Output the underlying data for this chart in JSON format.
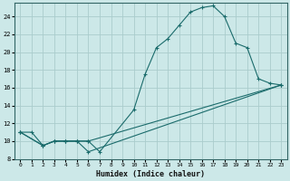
{
  "xlabel": "Humidex (Indice chaleur)",
  "bg_color": "#cce8e8",
  "grid_color": "#aacccc",
  "line_color": "#1a6b6b",
  "xlim": [
    -0.5,
    23.5
  ],
  "ylim": [
    8,
    25.5
  ],
  "xticks": [
    0,
    1,
    2,
    3,
    4,
    5,
    6,
    7,
    8,
    9,
    10,
    11,
    12,
    13,
    14,
    15,
    16,
    17,
    18,
    19,
    20,
    21,
    22,
    23
  ],
  "yticks": [
    8,
    10,
    12,
    14,
    16,
    18,
    20,
    22,
    24
  ],
  "line1_x": [
    0,
    1,
    2,
    3,
    4,
    5,
    6,
    7,
    10,
    11,
    12,
    13,
    14,
    15,
    16,
    17,
    18,
    19,
    20,
    21,
    22,
    23
  ],
  "line1_y": [
    11,
    11,
    9.5,
    10,
    10,
    10,
    10,
    8.8,
    13.5,
    17.5,
    20.5,
    21.5,
    23,
    24.5,
    25,
    25.2,
    24.0,
    21,
    20.5,
    17,
    16.5,
    16.3
  ],
  "line2_x": [
    0,
    2,
    3,
    4,
    5,
    6,
    23
  ],
  "line2_y": [
    11,
    9.5,
    10,
    10,
    10,
    10,
    16.3
  ],
  "line3_x": [
    0,
    2,
    3,
    4,
    5,
    6,
    23
  ],
  "line3_y": [
    11,
    9.5,
    10,
    10,
    10,
    8.8,
    16.3
  ]
}
